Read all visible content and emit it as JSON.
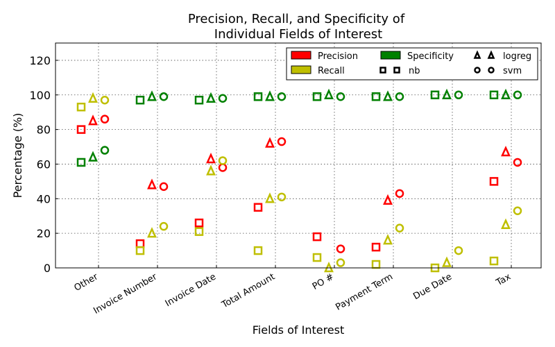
{
  "chart_data": {
    "type": "scatter",
    "title_lines": [
      "Precision, Recall, and Specificity of",
      "Individual Fields of Interest"
    ],
    "xlabel": "Fields of Interest",
    "ylabel": "Percentage (%)",
    "ylim": [
      0,
      130
    ],
    "yticks": [
      0,
      20,
      40,
      60,
      80,
      100,
      120
    ],
    "grid": true,
    "legend_position": "top-right",
    "categories": [
      "Other",
      "Invoice Number",
      "Invoice Date",
      "Total Amount",
      "PO #",
      "Payment Term",
      "Due Date",
      "Tax"
    ],
    "metrics": [
      {
        "name": "Precision",
        "color": "#ff0000"
      },
      {
        "name": "Recall",
        "color": "#bfbf00"
      },
      {
        "name": "Specificity",
        "color": "#008000"
      }
    ],
    "models": [
      {
        "name": "nb",
        "marker": "square"
      },
      {
        "name": "logreg",
        "marker": "triangle"
      },
      {
        "name": "svm",
        "marker": "circle"
      }
    ],
    "series": [
      {
        "model": "nb",
        "metric": "Precision",
        "values": [
          80,
          14,
          26,
          35,
          18,
          12,
          0,
          50
        ]
      },
      {
        "model": "nb",
        "metric": "Recall",
        "values": [
          93,
          10,
          21,
          10,
          6,
          2,
          0,
          4
        ]
      },
      {
        "model": "nb",
        "metric": "Specificity",
        "values": [
          61,
          97,
          97,
          99,
          99,
          99,
          100,
          100
        ]
      },
      {
        "model": "logreg",
        "metric": "Precision",
        "values": [
          85,
          48,
          63,
          72,
          0,
          39,
          0,
          67
        ]
      },
      {
        "model": "logreg",
        "metric": "Recall",
        "values": [
          98,
          20,
          56,
          40,
          0,
          16,
          3,
          25
        ]
      },
      {
        "model": "logreg",
        "metric": "Specificity",
        "values": [
          64,
          99,
          98,
          99,
          100,
          99,
          100,
          100
        ]
      },
      {
        "model": "svm",
        "metric": "Precision",
        "values": [
          86,
          47,
          58,
          73,
          11,
          43,
          0,
          61
        ]
      },
      {
        "model": "svm",
        "metric": "Recall",
        "values": [
          97,
          24,
          62,
          41,
          3,
          23,
          10,
          33
        ]
      },
      {
        "model": "svm",
        "metric": "Specificity",
        "values": [
          68,
          99,
          98,
          99,
          99,
          99,
          100,
          100
        ]
      }
    ],
    "hidden_points": [
      {
        "model": "logreg",
        "metric": "Precision",
        "category": "PO #"
      },
      {
        "model": "logreg",
        "metric": "Precision",
        "category": "Due Date"
      },
      {
        "model": "nb",
        "metric": "Precision",
        "category": "Due Date"
      },
      {
        "model": "svm",
        "metric": "Precision",
        "category": "Due Date"
      }
    ]
  }
}
